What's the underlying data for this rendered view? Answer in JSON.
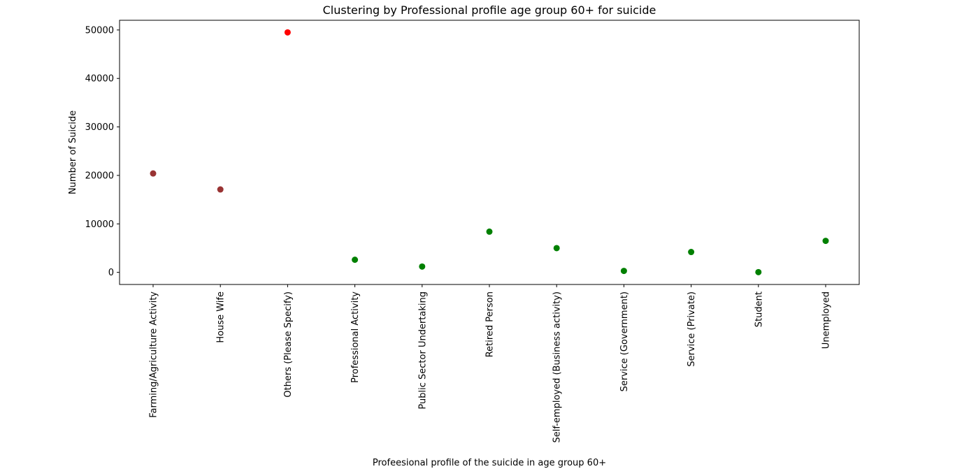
{
  "chart_data": {
    "type": "scatter",
    "title": "Clustering by Professional profile age group 60+ for suicide",
    "xlabel": "Profeesional profile of the suicide in age group 60+",
    "ylabel": "Number of Suicide",
    "categories": [
      "Farming/Agriculture Activity",
      "House Wife",
      "Others (Please Specify)",
      "Professional Activity",
      "Public Sector Undertaking",
      "Retired Person",
      "Self-employed (Business activity)",
      "Service (Government)",
      "Service (Private)",
      "Student",
      "Unemployed"
    ],
    "values": [
      20400,
      17100,
      49500,
      2600,
      1200,
      8400,
      5000,
      300,
      4200,
      50,
      6500
    ],
    "point_colors": [
      "#993333",
      "#993333",
      "#ff0000",
      "#008000",
      "#008000",
      "#008000",
      "#008000",
      "#008000",
      "#008000",
      "#008000",
      "#008000"
    ],
    "ylim": [
      -2500,
      52000
    ],
    "yticks": [
      0,
      10000,
      20000,
      30000,
      40000,
      50000
    ],
    "ytick_labels": [
      "0",
      "10000",
      "20000",
      "30000",
      "40000",
      "50000"
    ],
    "grid": false,
    "legend": false
  }
}
